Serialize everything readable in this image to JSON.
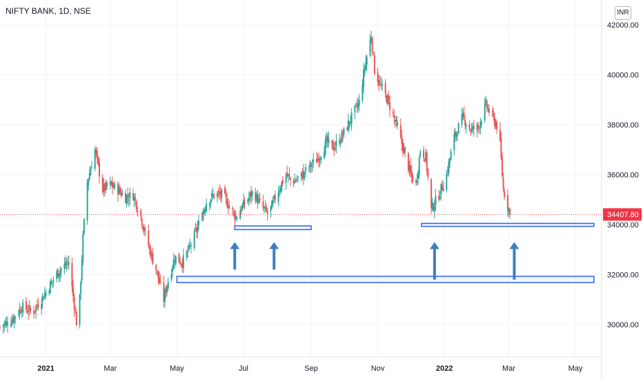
{
  "header": {
    "title": "NIFTY BANK, 1D, NSE",
    "currency_button": "INR"
  },
  "colors": {
    "up": "#26a69a",
    "down": "#ef5350",
    "box": "#2962ff",
    "arrow": "#3d7fc1",
    "last_price": "#f23645",
    "grid": "#f0f3fa"
  },
  "chart_data": {
    "type": "candlestick",
    "title": "NIFTY BANK, 1D, NSE",
    "y_axis": {
      "ticks": [
        30000,
        32000,
        34000,
        36000,
        38000,
        40000,
        42000
      ],
      "tick_labels": [
        "30000.00",
        "32000.00",
        "34000.00",
        "36000.00",
        "38000.00",
        "40000.00",
        "42000.00"
      ],
      "range": [
        28700,
        43000
      ]
    },
    "x_axis": {
      "ticks": [
        {
          "label": "2021",
          "date": "2021-01-01",
          "bold": true
        },
        {
          "label": "Mar",
          "date": "2021-03-01",
          "bold": false
        },
        {
          "label": "May",
          "date": "2021-05-01",
          "bold": false
        },
        {
          "label": "Jul",
          "date": "2021-07-01",
          "bold": false
        },
        {
          "label": "Sep",
          "date": "2021-09-01",
          "bold": false
        },
        {
          "label": "Nov",
          "date": "2021-11-01",
          "bold": false
        },
        {
          "label": "2022",
          "date": "2022-01-01",
          "bold": true
        },
        {
          "label": "Mar",
          "date": "2022-03-01",
          "bold": false
        },
        {
          "label": "May",
          "date": "2022-05-01",
          "bold": false
        }
      ],
      "range": [
        "2020-11-20",
        "2022-05-25"
      ]
    },
    "close_path": [
      [
        "2020-11-20",
        29900
      ],
      [
        "2020-12-01",
        30200
      ],
      [
        "2020-12-10",
        30700
      ],
      [
        "2020-12-20",
        30500
      ],
      [
        "2021-01-01",
        31300
      ],
      [
        "2021-01-12",
        32100
      ],
      [
        "2021-01-22",
        32500
      ],
      [
        "2021-01-29",
        30100
      ],
      [
        "2021-02-01",
        31000
      ],
      [
        "2021-02-04",
        33500
      ],
      [
        "2021-02-08",
        35700
      ],
      [
        "2021-02-15",
        37000
      ],
      [
        "2021-02-22",
        35400
      ],
      [
        "2021-03-01",
        35600
      ],
      [
        "2021-03-08",
        35400
      ],
      [
        "2021-03-15",
        35100
      ],
      [
        "2021-03-22",
        35200
      ],
      [
        "2021-03-29",
        34300
      ],
      [
        "2021-04-06",
        33000
      ],
      [
        "2021-04-12",
        32200
      ],
      [
        "2021-04-19",
        31000
      ],
      [
        "2021-04-22",
        31600
      ],
      [
        "2021-04-29",
        32700
      ],
      [
        "2021-05-06",
        32500
      ],
      [
        "2021-05-12",
        33000
      ],
      [
        "2021-05-20",
        33900
      ],
      [
        "2021-05-28",
        34900
      ],
      [
        "2021-06-04",
        35200
      ],
      [
        "2021-06-12",
        35200
      ],
      [
        "2021-06-20",
        34600
      ],
      [
        "2021-06-24",
        34300
      ],
      [
        "2021-07-01",
        34800
      ],
      [
        "2021-07-10",
        35300
      ],
      [
        "2021-07-18",
        34700
      ],
      [
        "2021-07-24",
        34400
      ],
      [
        "2021-08-01",
        35300
      ],
      [
        "2021-08-09",
        36000
      ],
      [
        "2021-08-15",
        35700
      ],
      [
        "2021-08-22",
        35900
      ],
      [
        "2021-08-30",
        36300
      ],
      [
        "2021-09-08",
        36700
      ],
      [
        "2021-09-15",
        37300
      ],
      [
        "2021-09-22",
        37100
      ],
      [
        "2021-09-30",
        37600
      ],
      [
        "2021-10-08",
        38300
      ],
      [
        "2021-10-15",
        38900
      ],
      [
        "2021-10-20",
        40300
      ],
      [
        "2021-10-26",
        41600
      ],
      [
        "2021-10-29",
        40200
      ],
      [
        "2021-11-03",
        39600
      ],
      [
        "2021-11-10",
        39000
      ],
      [
        "2021-11-18",
        38000
      ],
      [
        "2021-11-24",
        37100
      ],
      [
        "2021-12-01",
        36000
      ],
      [
        "2021-12-06",
        35600
      ],
      [
        "2021-12-10",
        37000
      ],
      [
        "2021-12-15",
        36700
      ],
      [
        "2021-12-20",
        34600
      ],
      [
        "2021-12-27",
        35200
      ],
      [
        "2022-01-03",
        36000
      ],
      [
        "2022-01-10",
        37500
      ],
      [
        "2022-01-18",
        38300
      ],
      [
        "2022-01-25",
        37800
      ],
      [
        "2022-02-01",
        37900
      ],
      [
        "2022-02-08",
        38800
      ],
      [
        "2022-02-14",
        38300
      ],
      [
        "2022-02-20",
        37800
      ],
      [
        "2022-02-24",
        35400
      ],
      [
        "2022-03-01",
        34600
      ],
      [
        "2022-03-02",
        34407.8
      ]
    ],
    "annotations": {
      "support_boxes": [
        {
          "start": "2021-06-23",
          "end": "2021-09-01",
          "top": 33950,
          "bottom": 33800
        },
        {
          "start": "2021-12-11",
          "end": "2022-05-18",
          "top": 34050,
          "bottom": 33930
        },
        {
          "start": "2021-05-01",
          "end": "2022-05-18",
          "top": 31930,
          "bottom": 31680
        }
      ],
      "arrows": [
        {
          "date": "2021-06-23",
          "tip": 33300,
          "tail": 32200
        },
        {
          "date": "2021-07-29",
          "tip": 33300,
          "tail": 32200
        },
        {
          "date": "2021-12-23",
          "tip": 33300,
          "tail": 31800
        },
        {
          "date": "2022-03-06",
          "tip": 33300,
          "tail": 31800
        }
      ]
    },
    "last_price": 34407.8,
    "last_price_label": "34407.80",
    "grid": true
  }
}
